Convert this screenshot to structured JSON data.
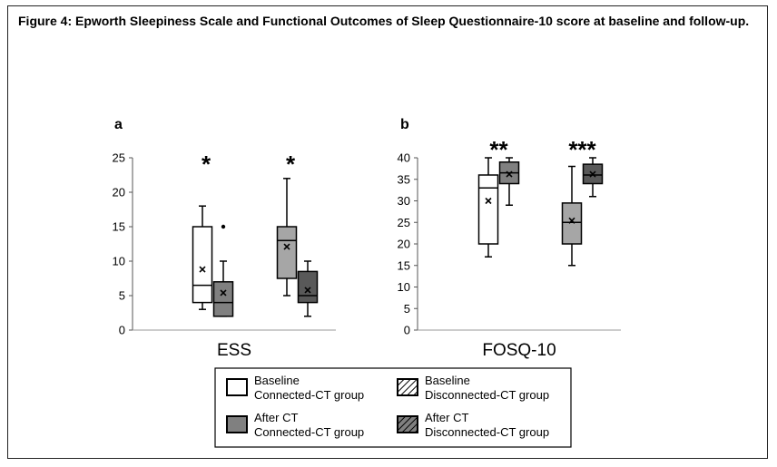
{
  "figure_title": "Figure 4: Epworth Sleepiness Scale and Functional Outcomes of Sleep Questionnaire-10 score at baseline and follow-up.",
  "chart_data": [
    {
      "type": "box",
      "panel": "a",
      "xlabel": "ESS",
      "ylim": [
        0,
        25
      ],
      "yticks": [
        0,
        5,
        10,
        15,
        20,
        25
      ],
      "groups": [
        {
          "significance": "*",
          "boxes": [
            {
              "series": "Baseline Connected-CT group",
              "min": 3,
              "q1": 4,
              "median": 6.5,
              "q3": 15,
              "max": 18,
              "mean": 8.8,
              "outliers": []
            },
            {
              "series": "After CT Connected-CT group",
              "min": 2,
              "q1": 2,
              "median": 4,
              "q3": 7,
              "max": 10,
              "mean": 5.4,
              "outliers": [
                15
              ]
            }
          ]
        },
        {
          "significance": "*",
          "boxes": [
            {
              "series": "Baseline Disconnected-CT group",
              "min": 5,
              "q1": 7.5,
              "median": 13,
              "q3": 15,
              "max": 22,
              "mean": 12.1,
              "outliers": []
            },
            {
              "series": "After CT Disconnected-CT group",
              "min": 2,
              "q1": 4,
              "median": 5,
              "q3": 8.5,
              "max": 10,
              "mean": 5.8,
              "outliers": []
            }
          ]
        }
      ]
    },
    {
      "type": "box",
      "panel": "b",
      "xlabel": "FOSQ-10",
      "ylim": [
        0,
        40
      ],
      "yticks": [
        0,
        5,
        10,
        15,
        20,
        25,
        30,
        35,
        40
      ],
      "groups": [
        {
          "significance": "**",
          "boxes": [
            {
              "series": "Baseline Connected-CT group",
              "min": 17,
              "q1": 20,
              "median": 33,
              "q3": 36,
              "max": 40,
              "mean": 30,
              "outliers": []
            },
            {
              "series": "After CT Connected-CT group",
              "min": 29,
              "q1": 34,
              "median": 36.5,
              "q3": 39,
              "max": 40,
              "mean": 36.2,
              "outliers": []
            }
          ]
        },
        {
          "significance": "***",
          "boxes": [
            {
              "series": "Baseline Disconnected-CT group",
              "min": 15,
              "q1": 20,
              "median": 25,
              "q3": 29.5,
              "max": 38,
              "mean": 25.4,
              "outliers": []
            },
            {
              "series": "After CT Disconnected-CT group",
              "min": 31,
              "q1": 34,
              "median": 36,
              "q3": 38.5,
              "max": 40,
              "mean": 36.2,
              "outliers": []
            }
          ]
        }
      ]
    }
  ],
  "legend": [
    {
      "line1": "Baseline",
      "line2": "Connected-CT group",
      "fill": "#ffffff",
      "hatched": false
    },
    {
      "line1": "Baseline",
      "line2": "Disconnected-CT group",
      "fill": "#ffffff",
      "hatched": true
    },
    {
      "line1": "After CT",
      "line2": "Connected-CT group",
      "fill": "#808080",
      "hatched": false
    },
    {
      "line1": "After CT",
      "line2": "Disconnected-CT group",
      "fill": "#5a5a5a",
      "hatched": true
    }
  ],
  "colors": {
    "baseline_connected": "#ffffff",
    "after_connected": "#808080",
    "baseline_disconnected": "#a6a6a6",
    "after_disconnected": "#595959"
  }
}
